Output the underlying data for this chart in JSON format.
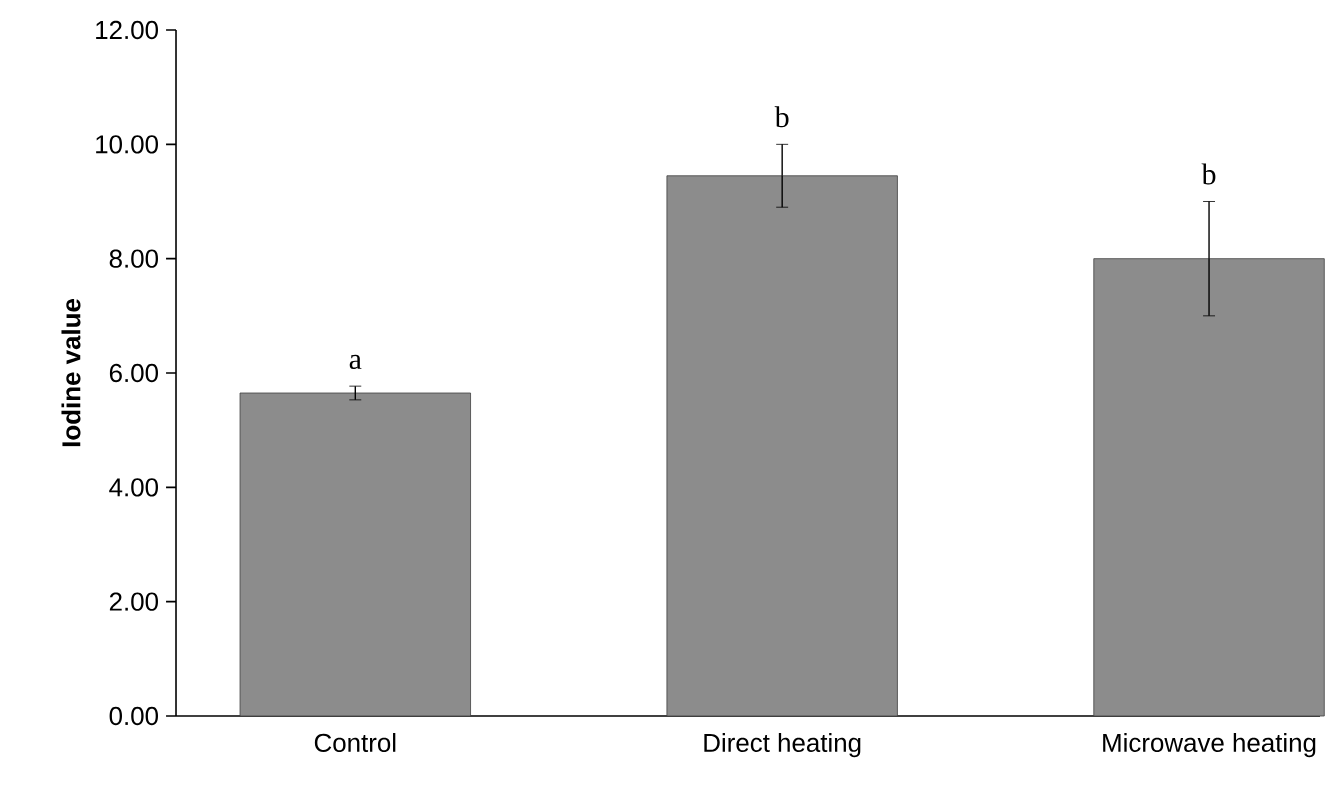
{
  "chart_data": {
    "type": "bar",
    "ylabel": "Iodine value",
    "categories": [
      "Control",
      "Direct heating",
      "Microwave heating"
    ],
    "values": [
      5.65,
      9.45,
      8.0
    ],
    "errors": [
      0.12,
      0.55,
      1.0
    ],
    "color": "#8c8c8c",
    "ylim": [
      0,
      12
    ],
    "yticks": [
      {
        "value": 0,
        "label": "0.00"
      },
      {
        "value": 2,
        "label": "2.00"
      },
      {
        "value": 4,
        "label": "4.00"
      },
      {
        "value": 6,
        "label": "6.00"
      },
      {
        "value": 8,
        "label": "8.00"
      },
      {
        "value": 10,
        "label": "10.00"
      },
      {
        "value": 12,
        "label": "12.00"
      }
    ],
    "annotations": [
      "a",
      "b",
      "b"
    ],
    "grid": false
  }
}
